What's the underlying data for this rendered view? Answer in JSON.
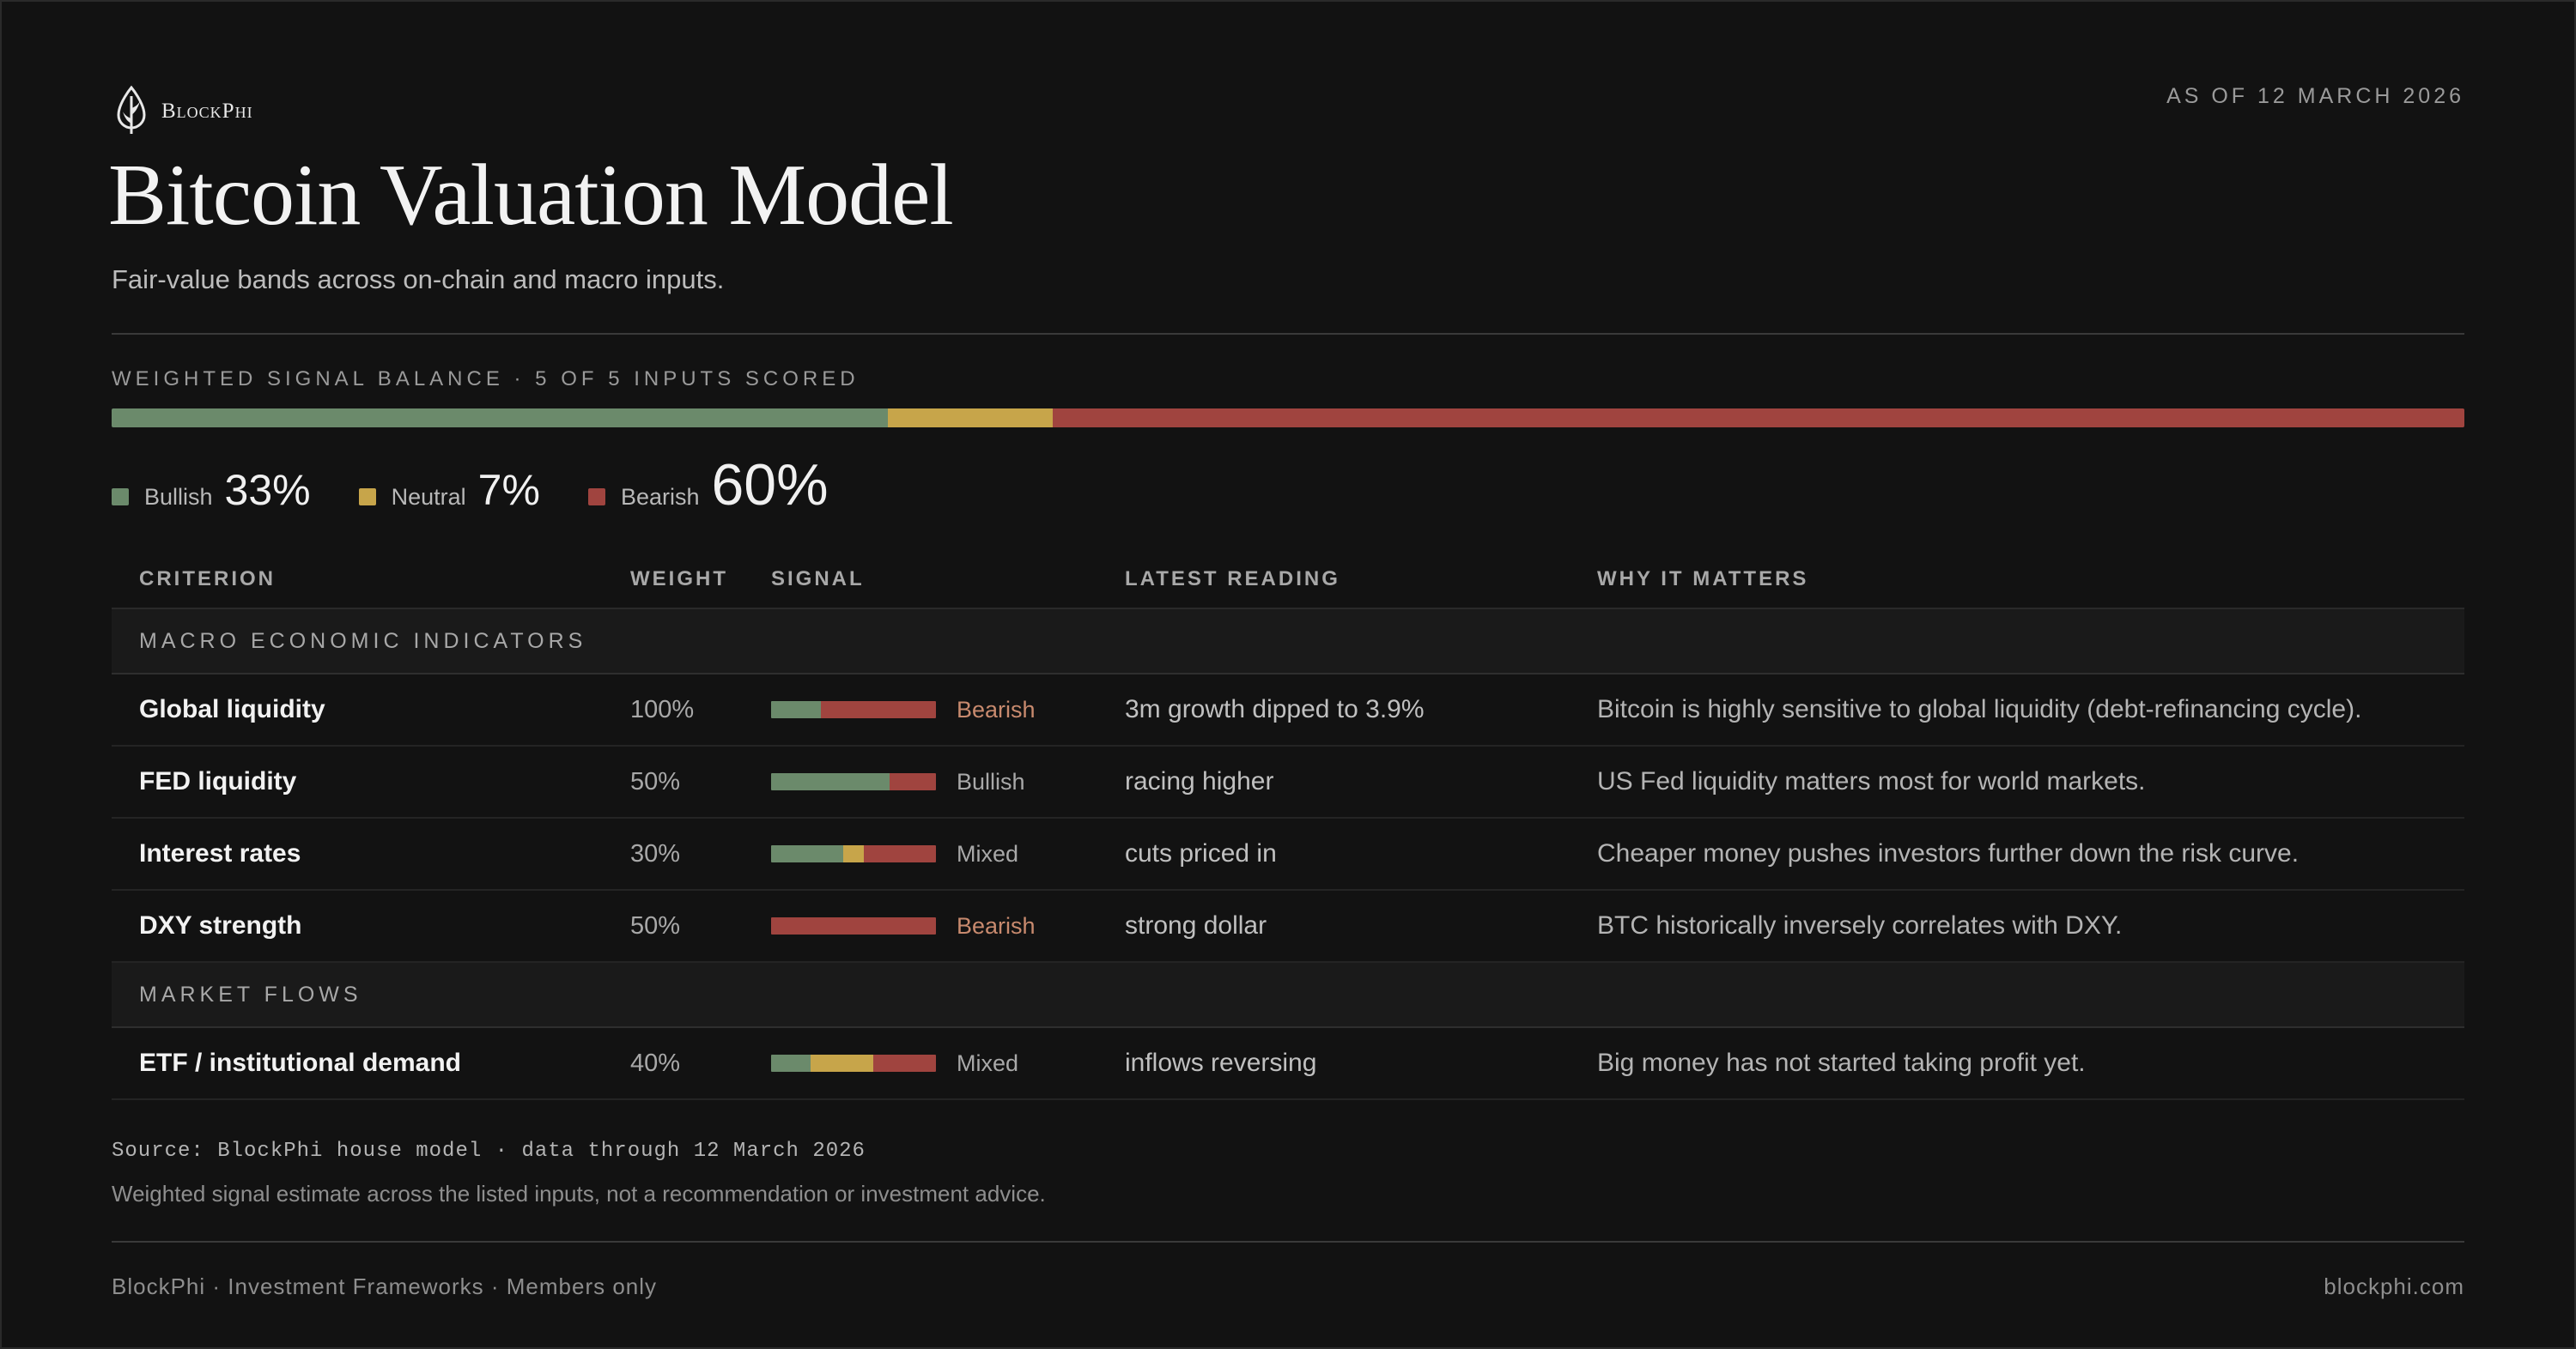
{
  "brand": {
    "name": "BlockPhi",
    "logo_icon": "leaf-drop-logo-icon"
  },
  "as_of": "AS OF 12 MARCH 2026",
  "title": "Bitcoin Valuation Model",
  "subtitle": "Fair-value bands across on-chain and macro inputs.",
  "colors": {
    "bullish": "#6b8a6b",
    "neutral": "#c7a54a",
    "bearish": "#a0443f"
  },
  "balance": {
    "label": "WEIGHTED SIGNAL BALANCE · 5 OF 5 INPUTS SCORED",
    "bullish": {
      "label": "Bullish",
      "value": "33%",
      "fraction": 0.33
    },
    "neutral": {
      "label": "Neutral",
      "value": "7%",
      "fraction": 0.07
    },
    "bearish": {
      "label": "Bearish",
      "value": "60%",
      "fraction": 0.6
    }
  },
  "table": {
    "headers": {
      "criterion": "CRITERION",
      "weight": "WEIGHT",
      "signal": "SIGNAL",
      "reading": "LATEST READING",
      "why": "WHY IT MATTERS"
    },
    "groups": [
      {
        "name": "MACRO ECONOMIC INDICATORS",
        "rows": [
          {
            "criterion": "Global liquidity",
            "weight": "100%",
            "signal": "Bearish",
            "signal_class": "bearish",
            "mix": {
              "bullish": 0.3,
              "neutral": 0.0,
              "bearish": 0.7
            },
            "reading": "3m growth dipped to 3.9%",
            "why": "Bitcoin is highly sensitive to global liquidity (debt-refinancing cycle)."
          },
          {
            "criterion": "FED liquidity",
            "weight": "50%",
            "signal": "Bullish",
            "signal_class": "bullish",
            "mix": {
              "bullish": 0.72,
              "neutral": 0.0,
              "bearish": 0.28
            },
            "reading": "racing higher",
            "why": "US Fed liquidity matters most for world markets."
          },
          {
            "criterion": "Interest rates",
            "weight": "30%",
            "signal": "Mixed",
            "signal_class": "mixed",
            "mix": {
              "bullish": 0.44,
              "neutral": 0.12,
              "bearish": 0.44
            },
            "reading": "cuts priced in",
            "why": "Cheaper money pushes investors further down the risk curve."
          },
          {
            "criterion": "DXY strength",
            "weight": "50%",
            "signal": "Bearish",
            "signal_class": "bearish",
            "mix": {
              "bullish": 0.0,
              "neutral": 0.0,
              "bearish": 1.0
            },
            "reading": "strong dollar",
            "why": "BTC historically inversely correlates with DXY."
          }
        ]
      },
      {
        "name": "MARKET FLOWS",
        "rows": [
          {
            "criterion": "ETF / institutional demand",
            "weight": "40%",
            "signal": "Mixed",
            "signal_class": "mixed",
            "mix": {
              "bullish": 0.24,
              "neutral": 0.38,
              "bearish": 0.38
            },
            "reading": "inflows reversing",
            "why": "Big money has not started taking profit yet."
          }
        ]
      }
    ]
  },
  "source": "Source: BlockPhi house model · data through 12 March 2026",
  "disclaimer": "Weighted signal estimate across the listed inputs, not a recommendation or investment advice.",
  "footer": {
    "left": "BlockPhi · Investment Frameworks · Members only",
    "right": "blockphi.com"
  }
}
